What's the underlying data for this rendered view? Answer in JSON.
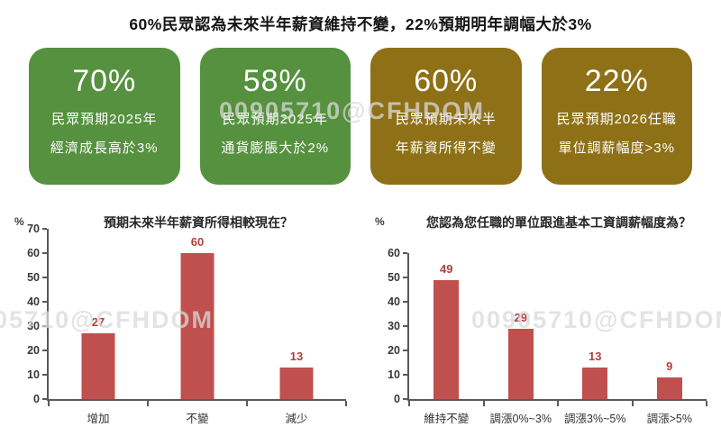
{
  "page_title": "60%民眾認為未來半年薪資維持不變，22%預期明年調幅大於3%",
  "watermark": {
    "text": "00905710@CFHDOM"
  },
  "colors": {
    "card_green": "#55913e",
    "card_gold": "#8e7017",
    "bar": "#c0504d",
    "value_label": "#b1403d",
    "axis": "#595959"
  },
  "cards": [
    {
      "value": "70%",
      "lines": [
        "民眾預期2025年",
        "經濟成長高於3%"
      ],
      "color": "#55913e"
    },
    {
      "value": "58%",
      "lines": [
        "民眾預期2025年",
        "通貨膨脹大於2%"
      ],
      "color": "#55913e"
    },
    {
      "value": "60%",
      "lines": [
        "民眾預期未來半",
        "年薪資所得不變"
      ],
      "color": "#8e7017"
    },
    {
      "value": "22%",
      "lines": [
        "民眾預期2026任職",
        "單位調薪幅度>3%"
      ],
      "color": "#8e7017"
    }
  ],
  "chart_data": [
    {
      "type": "bar",
      "title": "預期未來半年薪資所得相較現在？",
      "unit_label": "%",
      "categories": [
        "增加",
        "不變",
        "減少"
      ],
      "values": [
        27,
        60,
        13
      ],
      "ylim": [
        0,
        70
      ],
      "yticks": [
        0,
        10,
        20,
        30,
        40,
        50,
        60,
        70
      ],
      "grid": false,
      "legend": "none",
      "bar_color": "#c0504d"
    },
    {
      "type": "bar",
      "title": "您認為您任職的單位跟進基本工資調薪幅度為？",
      "unit_label": "%",
      "categories": [
        "維持不變",
        "調漲0%~3%",
        "調漲3%~5%",
        "調漲>5%"
      ],
      "values": [
        49,
        29,
        13,
        9
      ],
      "ylim": [
        0,
        60
      ],
      "yticks": [
        0,
        10,
        20,
        30,
        40,
        50,
        60
      ],
      "grid": false,
      "legend": "none",
      "bar_color": "#c0504d"
    }
  ]
}
